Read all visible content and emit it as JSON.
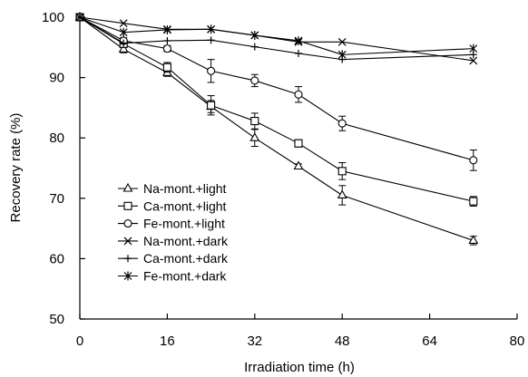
{
  "chart_data": {
    "type": "line",
    "title": "",
    "xlabel": "Irradiation time (h)",
    "ylabel": "Recovery rate (%)",
    "xlim": [
      0,
      80
    ],
    "ylim": [
      50,
      100
    ],
    "xticks": [
      0,
      16,
      32,
      48,
      64,
      80
    ],
    "yticks": [
      50,
      60,
      70,
      80,
      90,
      100
    ],
    "grid": false,
    "legend_position": "bottom-left",
    "x": [
      0,
      8,
      16,
      24,
      32,
      40,
      48,
      72
    ],
    "series": [
      {
        "name": "Na-mont.+light",
        "marker": "triangle",
        "values": [
          100,
          94.7,
          90.8,
          85.2,
          80.0,
          75.3,
          70.5,
          63.0
        ],
        "errors": [
          0.5,
          0.6,
          0.6,
          1.0,
          1.4,
          0.4,
          1.6,
          0.7
        ]
      },
      {
        "name": "Ca-mont.+light",
        "marker": "square",
        "values": [
          100,
          95.6,
          91.7,
          85.4,
          82.8,
          79.1,
          74.5,
          69.5
        ],
        "errors": [
          0.5,
          0.6,
          0.8,
          1.6,
          1.3,
          0.6,
          1.4,
          0.8
        ]
      },
      {
        "name": "Fe-mont.+light",
        "marker": "circle",
        "values": [
          100,
          96.1,
          94.8,
          91.1,
          89.5,
          87.2,
          82.4,
          76.3
        ],
        "errors": [
          0.5,
          0.5,
          0.5,
          1.9,
          1.0,
          1.3,
          1.2,
          1.7
        ]
      },
      {
        "name": "Na-mont.+dark",
        "marker": "x",
        "values": [
          100,
          99.0,
          98.0,
          98.0,
          97.0,
          95.9,
          95.9,
          92.8
        ],
        "errors": [
          0,
          0,
          0,
          0,
          0,
          0,
          0,
          0
        ]
      },
      {
        "name": "Ca-mont.+dark",
        "marker": "plus",
        "values": [
          100,
          95.7,
          96.1,
          96.2,
          95.1,
          94.0,
          93.0,
          93.8
        ],
        "errors": [
          0,
          0,
          0,
          0,
          0,
          0,
          0,
          0
        ]
      },
      {
        "name": "Fe-mont.+dark",
        "marker": "asterisk",
        "values": [
          100,
          97.5,
          97.9,
          98.0,
          97.0,
          96.1,
          93.8,
          94.8
        ],
        "errors": [
          0,
          0,
          0,
          0,
          0,
          0,
          0,
          0
        ]
      }
    ]
  }
}
